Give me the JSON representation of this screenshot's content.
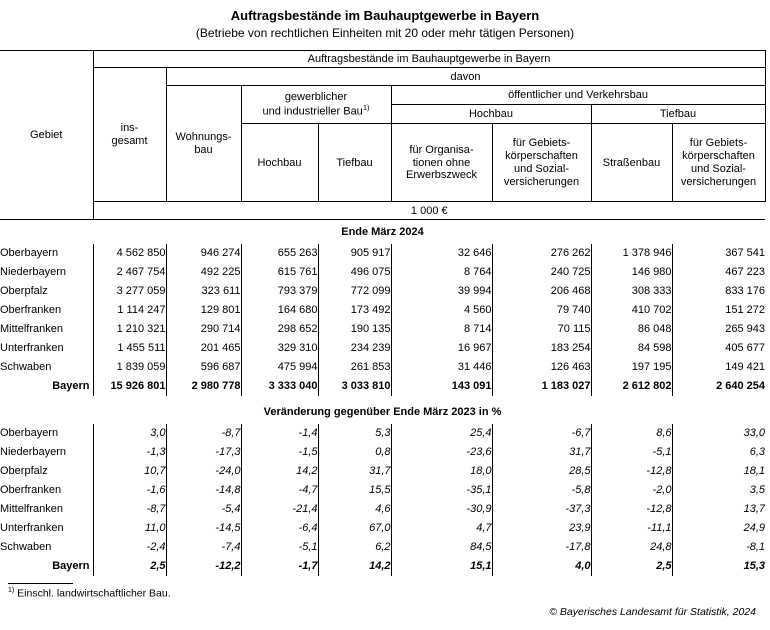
{
  "title": "Auftragsbestände im Bauhauptgewerbe in Bayern",
  "subtitle": "(Betriebe von rechtlichen Einheiten mit 20 oder mehr tätigen Personen)",
  "colors": {
    "text": "#000000",
    "background": "#ffffff",
    "border": "#000000"
  },
  "table": {
    "header": {
      "gebiet": "Gebiet",
      "span_title": "Auftragsbestände im Bauhauptgewerbe in Bayern",
      "davon": "davon",
      "insgesamt": "ins-\ngesamt",
      "wohnungsbau": "Wohnungs-\nbau",
      "gewerblich": "gewerblicher\nund industrieller Bau",
      "gewerblich_sup": "1)",
      "oeffentlich": "öffentlicher und Verkehrsbau",
      "hochbau_group": "Hochbau",
      "tiefbau_group": "Tiefbau",
      "leaf": [
        "Hochbau",
        "Tiefbau",
        "für Organisa-\ntionen ohne\nErwerbszweck",
        "für Gebiets-\nkörperschaften\nund Sozial-\nversicherungen",
        "Straßenbau",
        "für Gebiets-\nkörperschaften\nund Sozial-\nversicherungen"
      ],
      "unit": "1 000 €"
    },
    "sections": [
      {
        "heading": "Ende März 2024",
        "rows": [
          {
            "region": "Oberbayern",
            "values": [
              "4 562 850",
              "946 274",
              "655 263",
              "905 917",
              "32 646",
              "276 262",
              "1 378 946",
              "367 541"
            ]
          },
          {
            "region": "Niederbayern",
            "values": [
              "2 467 754",
              "492 225",
              "615 761",
              "496 075",
              "8 764",
              "240 725",
              "146 980",
              "467 223"
            ]
          },
          {
            "region": "Oberpfalz",
            "values": [
              "3 277 059",
              "323 611",
              "793 379",
              "772 099",
              "39 994",
              "206 468",
              "308 333",
              "833 176"
            ]
          },
          {
            "region": "Oberfranken",
            "values": [
              "1 114 247",
              "129 801",
              "164 680",
              "173 492",
              "4 560",
              "79 740",
              "410 702",
              "151 272"
            ]
          },
          {
            "region": "Mittelfranken",
            "values": [
              "1 210 321",
              "290 714",
              "298 652",
              "190 135",
              "8 714",
              "70 115",
              "86 048",
              "265 943"
            ]
          },
          {
            "region": "Unterfranken",
            "values": [
              "1 455 511",
              "201 465",
              "329 310",
              "234 239",
              "16 967",
              "183 254",
              "84 598",
              "405 677"
            ]
          },
          {
            "region": "Schwaben",
            "values": [
              "1 839 059",
              "596 687",
              "475 994",
              "261 853",
              "31 446",
              "126 463",
              "197 195",
              "149 421"
            ]
          },
          {
            "region": "Bayern",
            "total": true,
            "values": [
              "15 926 801",
              "2 980 778",
              "3 333 040",
              "3 033 810",
              "143 091",
              "1 183 027",
              "2 612 802",
              "2 640 254"
            ]
          }
        ]
      },
      {
        "heading": "Veränderung gegenüber Ende März 2023 in %",
        "rows": [
          {
            "region": "Oberbayern",
            "values": [
              "3,0",
              "-8,7",
              "-1,4",
              "5,3",
              "25,4",
              "-6,7",
              "8,6",
              "33,0"
            ]
          },
          {
            "region": "Niederbayern",
            "values": [
              "-1,3",
              "-17,3",
              "-1,5",
              "0,8",
              "-23,6",
              "31,7",
              "-5,1",
              "6,3"
            ]
          },
          {
            "region": "Oberpfalz",
            "values": [
              "10,7",
              "-24,0",
              "14,2",
              "31,7",
              "18,0",
              "28,5",
              "-12,8",
              "18,1"
            ]
          },
          {
            "region": "Oberfranken",
            "values": [
              "-1,6",
              "-14,8",
              "-4,7",
              "15,5",
              "-35,1",
              "-5,8",
              "-2,0",
              "3,5"
            ]
          },
          {
            "region": "Mittelfranken",
            "values": [
              "-8,7",
              "-5,4",
              "-21,4",
              "4,6",
              "-30,9",
              "-37,3",
              "-12,8",
              "13,7"
            ]
          },
          {
            "region": "Unterfranken",
            "values": [
              "11,0",
              "-14,5",
              "-6,4",
              "67,0",
              "4,7",
              "23,9",
              "-11,1",
              "24,9"
            ]
          },
          {
            "region": "Schwaben",
            "values": [
              "-2,4",
              "-7,4",
              "-5,1",
              "6,2",
              "84,5",
              "-17,8",
              "24,8",
              "-8,1"
            ]
          },
          {
            "region": "Bayern",
            "total": true,
            "values": [
              "2,5",
              "-12,2",
              "-1,7",
              "14,2",
              "15,1",
              "4,0",
              "2,5",
              "15,3"
            ]
          }
        ]
      }
    ]
  },
  "footnote": {
    "sup": "1)",
    "text": "Einschl. landwirtschaftlicher Bau."
  },
  "copyright": "©  Bayerisches Landesamt für Statistik, 2024"
}
